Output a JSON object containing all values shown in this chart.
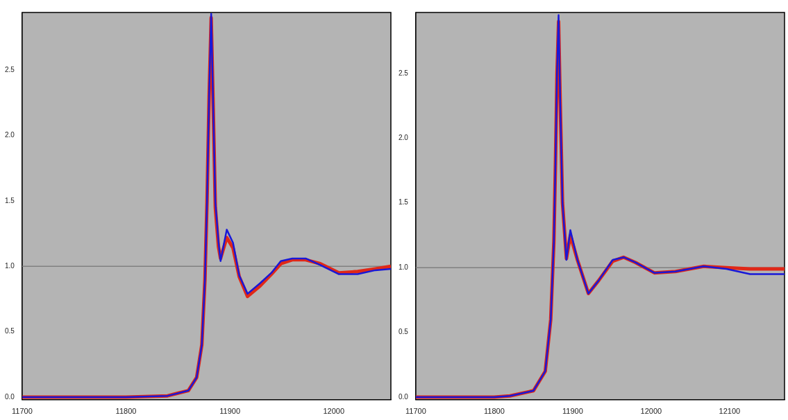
{
  "chart_data": [
    {
      "type": "line",
      "x": [
        11700,
        11800,
        11840,
        11860,
        11868,
        11873,
        11876,
        11878,
        11880,
        11882,
        11884,
        11886,
        11889,
        11891,
        11897,
        11903,
        11909,
        11917,
        11929,
        11940,
        11949,
        11960,
        11973,
        11987,
        12005,
        12023,
        12040,
        12055
      ],
      "series": [
        {
          "color": "#e02818",
          "values": [
            0.0,
            0.0,
            0.01,
            0.05,
            0.15,
            0.4,
            0.9,
            1.5,
            2.3,
            2.9,
            2.2,
            1.45,
            1.15,
            1.06,
            1.22,
            1.14,
            0.92,
            0.77,
            0.85,
            0.94,
            1.02,
            1.05,
            1.05,
            1.02,
            0.95,
            0.96,
            0.98,
            1.0
          ]
        },
        {
          "color": "#1818d8",
          "values": [
            0.0,
            0.0,
            0.01,
            0.05,
            0.15,
            0.4,
            0.9,
            1.5,
            2.3,
            2.93,
            2.2,
            1.49,
            1.19,
            1.04,
            1.28,
            1.18,
            0.93,
            0.79,
            0.87,
            0.95,
            1.04,
            1.06,
            1.06,
            1.01,
            0.94,
            0.94,
            0.97,
            0.98
          ]
        }
      ],
      "xlim": [
        11700,
        12055
      ],
      "xticks": [
        11700,
        11800,
        11900,
        12000
      ],
      "ylim": [
        -0.02,
        2.94
      ],
      "yticks": [
        {
          "value": 0,
          "label": "0.0"
        },
        0.5,
        {
          "value": 1,
          "label": "1.0"
        },
        1.5,
        {
          "value": 2,
          "label": "2.0"
        },
        2.5
      ],
      "ref_lines": [
        {
          "axis": "y",
          "value": 1,
          "color": "#808080"
        }
      ],
      "grid": false,
      "legend": false,
      "marker": "none",
      "line_style": "solid"
    },
    {
      "type": "line",
      "x": [
        11700,
        11800,
        11820,
        11850,
        11865,
        11872,
        11876,
        11878,
        11880,
        11882,
        11884,
        11887,
        11892,
        11897,
        11906,
        11920,
        11933,
        11951,
        11965,
        11980,
        12004,
        12031,
        12067,
        12096,
        12126,
        12170
      ],
      "series": [
        {
          "color": "#e02818",
          "values": [
            0.0,
            0.0,
            0.01,
            0.05,
            0.2,
            0.6,
            1.2,
            1.8,
            2.5,
            2.9,
            2.3,
            1.5,
            1.07,
            1.25,
            1.06,
            0.8,
            0.9,
            1.05,
            1.08,
            1.04,
            0.96,
            0.97,
            1.01,
            1.0,
            0.99,
            0.99
          ]
        },
        {
          "color": "#1818d8",
          "values": [
            0.0,
            0.0,
            0.01,
            0.05,
            0.2,
            0.6,
            1.2,
            1.8,
            2.5,
            2.95,
            2.3,
            1.5,
            1.06,
            1.29,
            1.06,
            0.8,
            0.9,
            1.06,
            1.08,
            1.04,
            0.96,
            0.97,
            1.01,
            0.99,
            0.95,
            0.95
          ]
        }
      ],
      "xlim": [
        11700,
        12170
      ],
      "xticks": [
        11700,
        11800,
        11900,
        12000,
        12100
      ],
      "ylim": [
        -0.02,
        2.97
      ],
      "yticks": [
        {
          "value": 0,
          "label": "0.0"
        },
        0.5,
        {
          "value": 1,
          "label": "1.0"
        },
        1.5,
        {
          "value": 2,
          "label": "2.0"
        },
        2.5
      ],
      "ref_lines": [
        {
          "axis": "y",
          "value": 1,
          "color": "#808080"
        }
      ],
      "grid": false,
      "legend": false,
      "marker": "none",
      "line_style": "solid"
    }
  ]
}
